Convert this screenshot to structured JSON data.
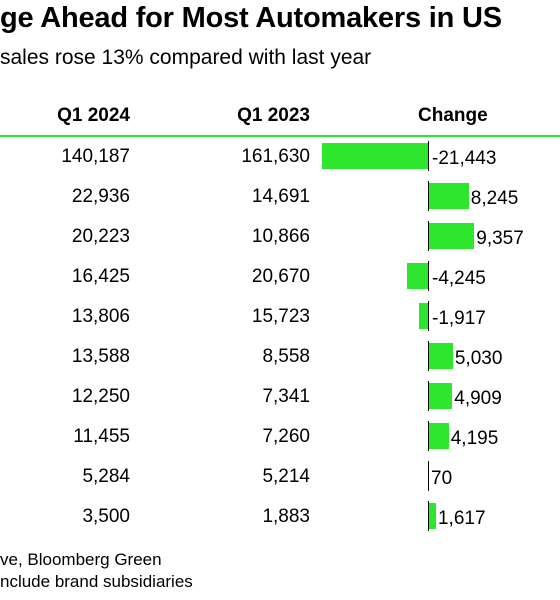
{
  "title": "ge Ahead for Most Automakers in US",
  "subtitle": "sales rose 13% compared with last year",
  "chart_data": {
    "type": "table",
    "columns": [
      "Q1 2024",
      "Q1 2023",
      "Change"
    ],
    "bar_color": "#2ee62e",
    "rows": [
      {
        "q1_2024": "140,187",
        "q1_2023": "161,630",
        "change_label": "-21,443",
        "change": -21443
      },
      {
        "q1_2024": "22,936",
        "q1_2023": "14,691",
        "change_label": "8,245",
        "change": 8245
      },
      {
        "q1_2024": "20,223",
        "q1_2023": "10,866",
        "change_label": "9,357",
        "change": 9357
      },
      {
        "q1_2024": "16,425",
        "q1_2023": "20,670",
        "change_label": "-4,245",
        "change": -4245
      },
      {
        "q1_2024": "13,806",
        "q1_2023": "15,723",
        "change_label": "-1,917",
        "change": -1917
      },
      {
        "q1_2024": "13,588",
        "q1_2023": "8,558",
        "change_label": "5,030",
        "change": 5030
      },
      {
        "q1_2024": "12,250",
        "q1_2023": "7,341",
        "change_label": "4,909",
        "change": 4909
      },
      {
        "q1_2024": "11,455",
        "q1_2023": "7,260",
        "change_label": "4,195",
        "change": 4195
      },
      {
        "q1_2024": "5,284",
        "q1_2023": "5,214",
        "change_label": "70",
        "change": 70
      },
      {
        "q1_2024": "3,500",
        "q1_2023": "1,883",
        "change_label": "1,617",
        "change": 1617
      }
    ]
  },
  "footer": {
    "line1": "ve, Bloomberg Green",
    "line2": "nclude brand subsidiaries"
  }
}
